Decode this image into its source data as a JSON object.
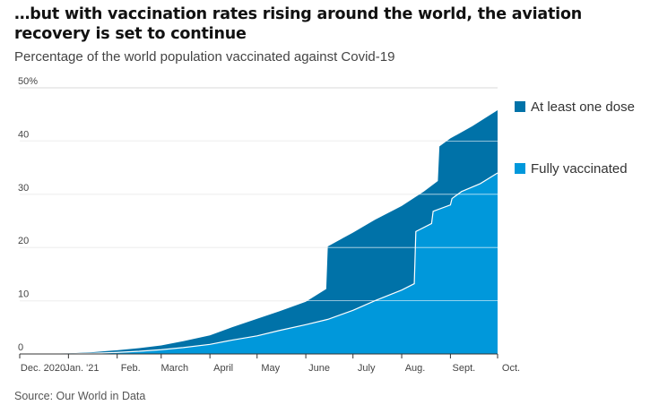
{
  "title": "…but with vaccination rates rising around the world, the aviation recovery is set to continue",
  "subtitle": "Percentage of the world population vaccinated against Covid-19",
  "source": "Source: Our World in Data",
  "colors": {
    "at_least_one_dose": "#0072a8",
    "fully_vaccinated": "#0098db",
    "grid": "#d9d9d9",
    "axis": "#333333"
  },
  "chart_data": {
    "type": "area",
    "title": "Percentage of the world population vaccinated against Covid-19",
    "xlabel": "",
    "ylabel": "",
    "x_tick_labels": [
      "Dec. 2020",
      "Jan. '21",
      "Feb.",
      "March",
      "April",
      "May",
      "June",
      "July",
      "Aug.",
      "Sept.",
      "Oct."
    ],
    "y_tick_labels": [
      "50%",
      "40",
      "30",
      "20",
      "10",
      "0"
    ],
    "y_ticks": [
      50,
      40,
      30,
      20,
      10,
      0
    ],
    "ylim": [
      0,
      50
    ],
    "xlim": [
      "2020-12-01",
      "2021-10-01"
    ],
    "stacked": false,
    "legend": "right",
    "grid": true,
    "series": [
      {
        "name": "At least one dose",
        "color": "#0072a8",
        "points": [
          [
            "2020-12-01",
            0
          ],
          [
            "2020-12-15",
            0.05
          ],
          [
            "2021-01-01",
            0.1
          ],
          [
            "2021-01-15",
            0.3
          ],
          [
            "2021-02-01",
            0.7
          ],
          [
            "2021-02-15",
            1.1
          ],
          [
            "2021-03-01",
            1.6
          ],
          [
            "2021-03-15",
            2.4
          ],
          [
            "2021-04-01",
            3.5
          ],
          [
            "2021-04-15",
            5.0
          ],
          [
            "2021-05-01",
            6.6
          ],
          [
            "2021-05-15",
            8.0
          ],
          [
            "2021-06-01",
            9.8
          ],
          [
            "2021-06-14",
            12.2
          ],
          [
            "2021-06-15",
            20.2
          ],
          [
            "2021-07-01",
            22.8
          ],
          [
            "2021-07-15",
            25.2
          ],
          [
            "2021-08-01",
            27.8
          ],
          [
            "2021-08-15",
            30.5
          ],
          [
            "2021-08-24",
            32.5
          ],
          [
            "2021-08-25",
            39.0
          ],
          [
            "2021-09-01",
            40.5
          ],
          [
            "2021-09-15",
            42.8
          ],
          [
            "2021-10-01",
            45.8
          ]
        ]
      },
      {
        "name": "Fully vaccinated",
        "color": "#0098db",
        "points": [
          [
            "2020-12-01",
            0
          ],
          [
            "2021-01-01",
            0.02
          ],
          [
            "2021-01-15",
            0.1
          ],
          [
            "2021-02-01",
            0.3
          ],
          [
            "2021-02-15",
            0.5
          ],
          [
            "2021-03-01",
            0.8
          ],
          [
            "2021-03-15",
            1.2
          ],
          [
            "2021-04-01",
            1.8
          ],
          [
            "2021-04-15",
            2.6
          ],
          [
            "2021-05-01",
            3.4
          ],
          [
            "2021-05-15",
            4.4
          ],
          [
            "2021-06-01",
            5.5
          ],
          [
            "2021-06-15",
            6.5
          ],
          [
            "2021-07-01",
            8.2
          ],
          [
            "2021-07-15",
            10.0
          ],
          [
            "2021-08-01",
            12.0
          ],
          [
            "2021-08-09",
            13.2
          ],
          [
            "2021-08-10",
            23.0
          ],
          [
            "2021-08-20",
            24.5
          ],
          [
            "2021-08-21",
            26.8
          ],
          [
            "2021-09-01",
            28.0
          ],
          [
            "2021-09-02",
            29.2
          ],
          [
            "2021-09-08",
            30.5
          ],
          [
            "2021-09-20",
            32.0
          ],
          [
            "2021-10-01",
            34.0
          ]
        ]
      }
    ]
  }
}
